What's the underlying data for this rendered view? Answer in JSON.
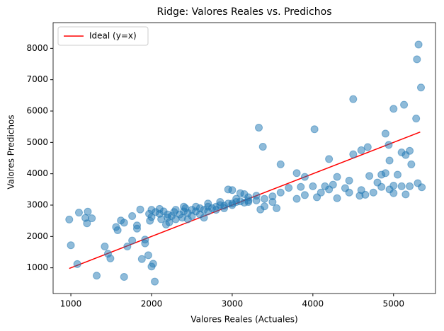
{
  "chart_data": {
    "type": "scatter",
    "title": "Ridge: Valores Reales vs. Predichos",
    "xlabel": "Valores Reales (Actuales)",
    "ylabel": "Valores Predichos",
    "xlim": [
      780,
      5520
    ],
    "ylim": [
      180,
      8820
    ],
    "xticks": [
      1000,
      2000,
      3000,
      4000,
      5000
    ],
    "yticks": [
      1000,
      2000,
      3000,
      4000,
      5000,
      6000,
      7000,
      8000
    ],
    "legend": "upper left",
    "series": [
      {
        "name": "Ideal (y=x)",
        "color": "#ff0000",
        "kind": "line",
        "x": [
          980,
          5330
        ],
        "values": [
          980,
          5330
        ]
      },
      {
        "color": "#1f77b4",
        "kind": "points",
        "x": [
          980,
          1000,
          1080,
          1100,
          1180,
          1200,
          1210,
          1260,
          1320,
          1420,
          1460,
          1490,
          1560,
          1580,
          1620,
          1660,
          1660,
          1700,
          1760,
          1760,
          1820,
          1820,
          1860,
          1880,
          1920,
          1920,
          1960,
          1980,
          2000,
          2020,
          2040,
          1970,
          2050,
          2000,
          3330,
          3380,
          4020,
          4500,
          5000,
          5130,
          5290,
          5310,
          5340,
          5280,
          4900,
          4940,
          3600,
          4200,
          4500,
          4600,
          4680,
          4800,
          4700,
          4850,
          4900,
          4950,
          5000,
          5000,
          5100,
          5150,
          5200,
          5220,
          5300,
          5350,
          5150,
          5100,
          5050,
          4650,
          4600,
          4450,
          4400,
          4300,
          4200,
          4100,
          4150,
          3900,
          3800,
          3850,
          3700,
          3600,
          3500,
          3400,
          3300,
          3200,
          3100,
          3000,
          3200,
          3300,
          3500,
          3800,
          3900,
          4000,
          4300,
          4450,
          4580,
          4750,
          4850,
          5200,
          4950,
          3350,
          3400,
          3550,
          4250,
          4050,
          2100,
          2150,
          2200,
          2250,
          2280,
          2300,
          2350,
          2400,
          2420,
          2450,
          2500,
          2550,
          2600,
          2650,
          2700,
          2750,
          2800,
          2850,
          2900,
          2950,
          3000,
          3050,
          3100,
          3150,
          3200,
          2200,
          2300,
          2180,
          2220,
          2380,
          2500,
          2600,
          2700,
          2800,
          2900,
          2400,
          2550,
          2700,
          2850,
          3000,
          3050,
          2950,
          3150,
          2450,
          2650,
          2100,
          2120,
          2000
        ],
        "values": [
          2540,
          1720,
          1120,
          2760,
          2590,
          2420,
          2790,
          2580,
          750,
          1680,
          1450,
          1300,
          2300,
          2200,
          2510,
          2440,
          710,
          1680,
          2650,
          1870,
          2350,
          2250,
          2860,
          1280,
          1900,
          1780,
          1400,
          2500,
          1040,
          1130,
          560,
          2720,
          2780,
          2620,
          5470,
          4860,
          5420,
          6380,
          6070,
          6200,
          7650,
          8120,
          6750,
          5760,
          5280,
          4920,
          4300,
          4470,
          4620,
          4750,
          4850,
          3720,
          3930,
          3970,
          4020,
          4420,
          3620,
          3380,
          4680,
          4600,
          4730,
          4300,
          3700,
          3570,
          3340,
          3600,
          3970,
          3330,
          3480,
          3780,
          3540,
          3220,
          3500,
          3400,
          3600,
          3900,
          4020,
          3580,
          3550,
          3400,
          3280,
          3200,
          3300,
          3250,
          3380,
          3480,
          3100,
          3150,
          3100,
          3200,
          3320,
          3600,
          3900,
          3400,
          3300,
          3400,
          3580,
          3600,
          3500,
          2860,
          2960,
          2900,
          3650,
          3250,
          2720,
          2800,
          2700,
          2650,
          2780,
          2850,
          2700,
          2800,
          2900,
          2750,
          2850,
          2800,
          2900,
          2850,
          2950,
          2900,
          2950,
          3000,
          2980,
          3050,
          3050,
          3100,
          3120,
          3080,
          3150,
          2600,
          2550,
          2380,
          2450,
          2600,
          2650,
          2700,
          2800,
          2850,
          2900,
          2950,
          2950,
          3050,
          3100,
          3000,
          3200,
          3500,
          3350,
          2550,
          2600,
          2880,
          2550,
          2850
        ]
      }
    ]
  }
}
